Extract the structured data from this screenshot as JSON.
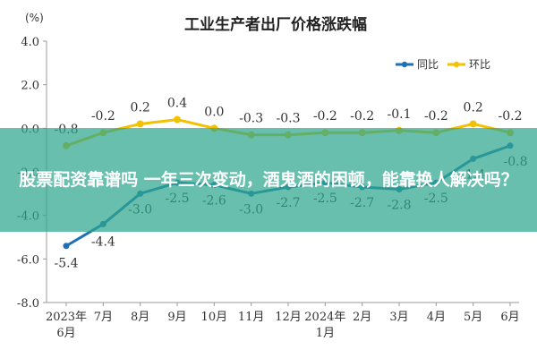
{
  "chart_data": {
    "type": "line",
    "title": "工业生产者出厂价格涨跌幅",
    "unit_label": "(%)",
    "categories": [
      "2023年\n6月",
      "7月",
      "8月",
      "9月",
      "10月",
      "11月",
      "12月",
      "2024年\n1月",
      "2月",
      "3月",
      "4月",
      "5月",
      "6月"
    ],
    "ylim": [
      -8.0,
      4.0
    ],
    "yticks": [
      "4.0",
      "2.0",
      "0.0",
      "-2.0",
      "-4.0",
      "-6.0",
      "-8.0"
    ],
    "legend_position": "top-right",
    "grid": false,
    "series": [
      {
        "name": "同比",
        "color": "#1f6fb4",
        "values": [
          -5.4,
          -4.4,
          -3.0,
          -2.5,
          -2.6,
          -3.0,
          -2.7,
          -2.5,
          -2.7,
          -2.8,
          -2.5,
          -1.4,
          -0.8
        ],
        "labels": [
          "-5.4",
          "-4.4",
          "-3.0",
          "-2.5",
          "-2.6",
          "-3.0",
          "-2.7",
          "-2.5",
          "-2.7",
          "-2.8",
          "-2.5",
          "-1.4",
          "-0.8"
        ]
      },
      {
        "name": "环比",
        "color": "#f2c200",
        "values": [
          -0.8,
          -0.2,
          0.2,
          0.4,
          0.0,
          -0.3,
          -0.3,
          -0.2,
          -0.2,
          -0.1,
          -0.2,
          0.2,
          -0.2
        ],
        "labels": [
          "-0.8",
          "-0.2",
          "0.2",
          "0.4",
          "0.0",
          "-0.3",
          "-0.3",
          "-0.2",
          "-0.2",
          "-0.1",
          "-0.2",
          "0.2",
          "-0.2"
        ]
      }
    ]
  },
  "overlay": {
    "headline": "股票配资靠谱吗 一年三次变动，酒鬼酒的困顿，能靠换人解决吗？"
  },
  "colors": {
    "axis": "#999999",
    "overlay": "#2ea68e"
  }
}
